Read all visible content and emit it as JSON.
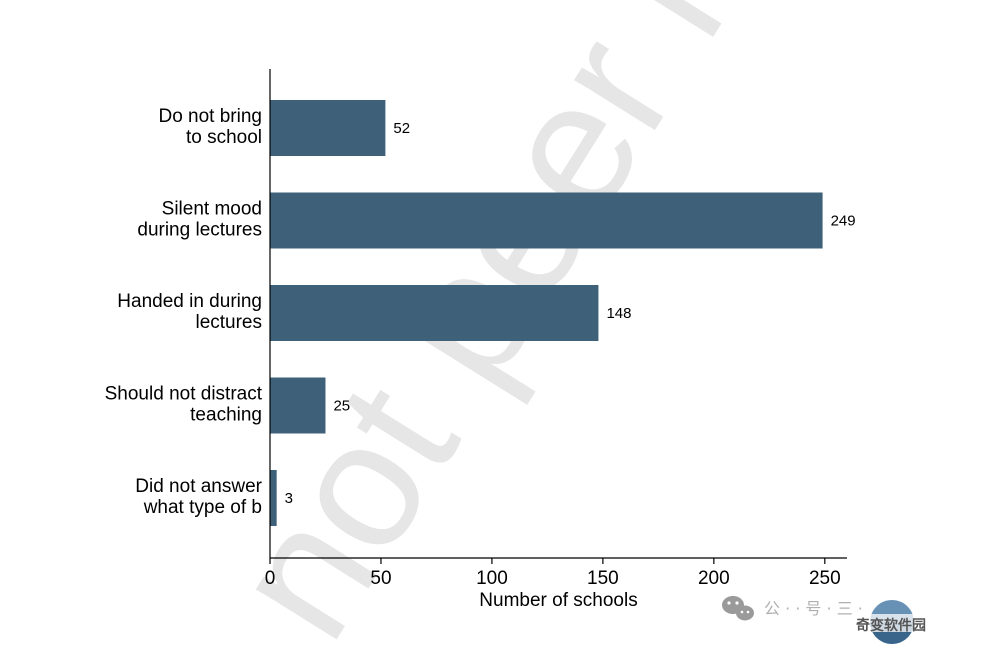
{
  "chart_data": {
    "type": "bar",
    "orientation": "horizontal",
    "categories": [
      [
        "Do not bring",
        "to school"
      ],
      [
        "Silent mood",
        "during lectures"
      ],
      [
        "Handed in during",
        "lectures"
      ],
      [
        "Should not distract",
        "teaching"
      ],
      [
        "Did not answer",
        "what type of b"
      ]
    ],
    "values": [
      52,
      249,
      148,
      25,
      3
    ],
    "data_labels": [
      "52",
      "249",
      "148",
      "25",
      "3"
    ],
    "xlabel": "Number of schools",
    "xlim": [
      0,
      260
    ],
    "xticks": [
      0,
      50,
      100,
      150,
      200,
      250
    ],
    "grid": false,
    "bar_color": "#3e6079"
  },
  "watermark": {
    "text": "not peer re"
  },
  "footer": {
    "channel_glyphs": "公 · · 号 · 三 ·",
    "site_name": "奇变软件园",
    "wechat_icon": "wechat-icon",
    "logo_icon": "site-logo-icon"
  }
}
